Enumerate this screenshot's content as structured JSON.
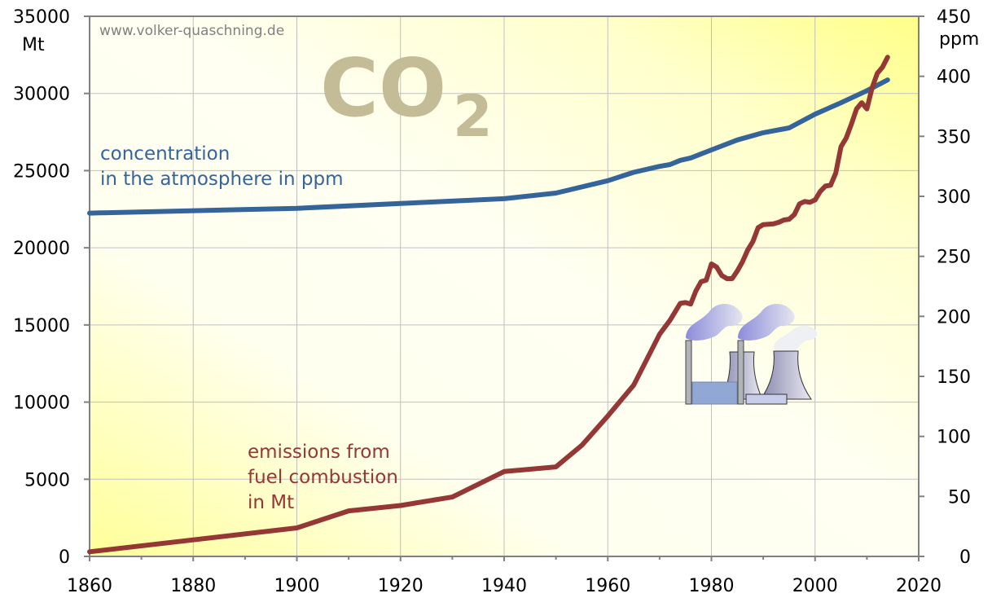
{
  "chart_data": {
    "type": "line",
    "title": "CO2",
    "title_main": "CO",
    "title_sub": "2",
    "watermark": "www.volker-quaschning.de",
    "xlim": [
      1860,
      2020
    ],
    "x_ticks": [
      "1860",
      "1880",
      "1900",
      "1920",
      "1940",
      "1960",
      "1980",
      "2000",
      "2020"
    ],
    "y_left": {
      "label": "Mt",
      "lim": [
        0,
        35000
      ],
      "ticks": [
        "0",
        "5000",
        "10000",
        "15000",
        "20000",
        "25000",
        "30000",
        "35000"
      ]
    },
    "y_right": {
      "label": "ppm",
      "lim": [
        0,
        450
      ],
      "ticks": [
        "0",
        "50",
        "100",
        "150",
        "200",
        "250",
        "300",
        "350",
        "400",
        "450"
      ]
    },
    "grid": true,
    "series": [
      {
        "name_lines": [
          "concentration",
          "in the atmosphere in ppm"
        ],
        "axis": "right",
        "color": "#35649a",
        "x": [
          1860,
          1900,
          1920,
          1940,
          1950,
          1960,
          1965,
          1970,
          1972,
          1974,
          1976,
          1980,
          1985,
          1990,
          1995,
          2000,
          2005,
          2010,
          2014
        ],
        "y": [
          286,
          290,
          294,
          298,
          302.7,
          313,
          320,
          325,
          326.5,
          330,
          332,
          338.7,
          347,
          353,
          357,
          368.5,
          378,
          388,
          397
        ]
      },
      {
        "name_lines": [
          "emissions from",
          "fuel combustion",
          "in Mt"
        ],
        "axis": "left",
        "color": "#953735",
        "x": [
          1860,
          1900,
          1910,
          1920,
          1930,
          1940,
          1950,
          1955,
          1960,
          1965,
          1970,
          1972,
          1974,
          1975,
          1976,
          1977,
          1978,
          1979,
          1980,
          1981,
          1982,
          1983,
          1984,
          1985,
          1986,
          1987,
          1988,
          1989,
          1990,
          1992,
          1993,
          1994,
          1995,
          1996,
          1997,
          1998,
          1999,
          2000,
          2001,
          2002,
          2003,
          2004,
          2005,
          2006,
          2007,
          2008,
          2009,
          2010,
          2011,
          2012,
          2013,
          2014
        ],
        "y": [
          300,
          1850,
          2950,
          3300,
          3850,
          5500,
          5800,
          7200,
          9100,
          11100,
          14400,
          15300,
          16400,
          16450,
          16350,
          17200,
          17800,
          17900,
          18950,
          18750,
          18200,
          18000,
          18000,
          18500,
          19100,
          19850,
          20400,
          21300,
          21500,
          21550,
          21650,
          21800,
          21850,
          22150,
          22850,
          23000,
          22950,
          23100,
          23650,
          24000,
          24050,
          24850,
          26550,
          27100,
          28000,
          29000,
          29400,
          29000,
          30350,
          31300,
          31700,
          32350
        ]
      }
    ],
    "background": {
      "corner_color": "#ffff99",
      "center_color": "#ffffff"
    },
    "grid_color": "#c0c0c0",
    "title_color": "#c4bc96",
    "illustration": "power-plant-icon"
  }
}
